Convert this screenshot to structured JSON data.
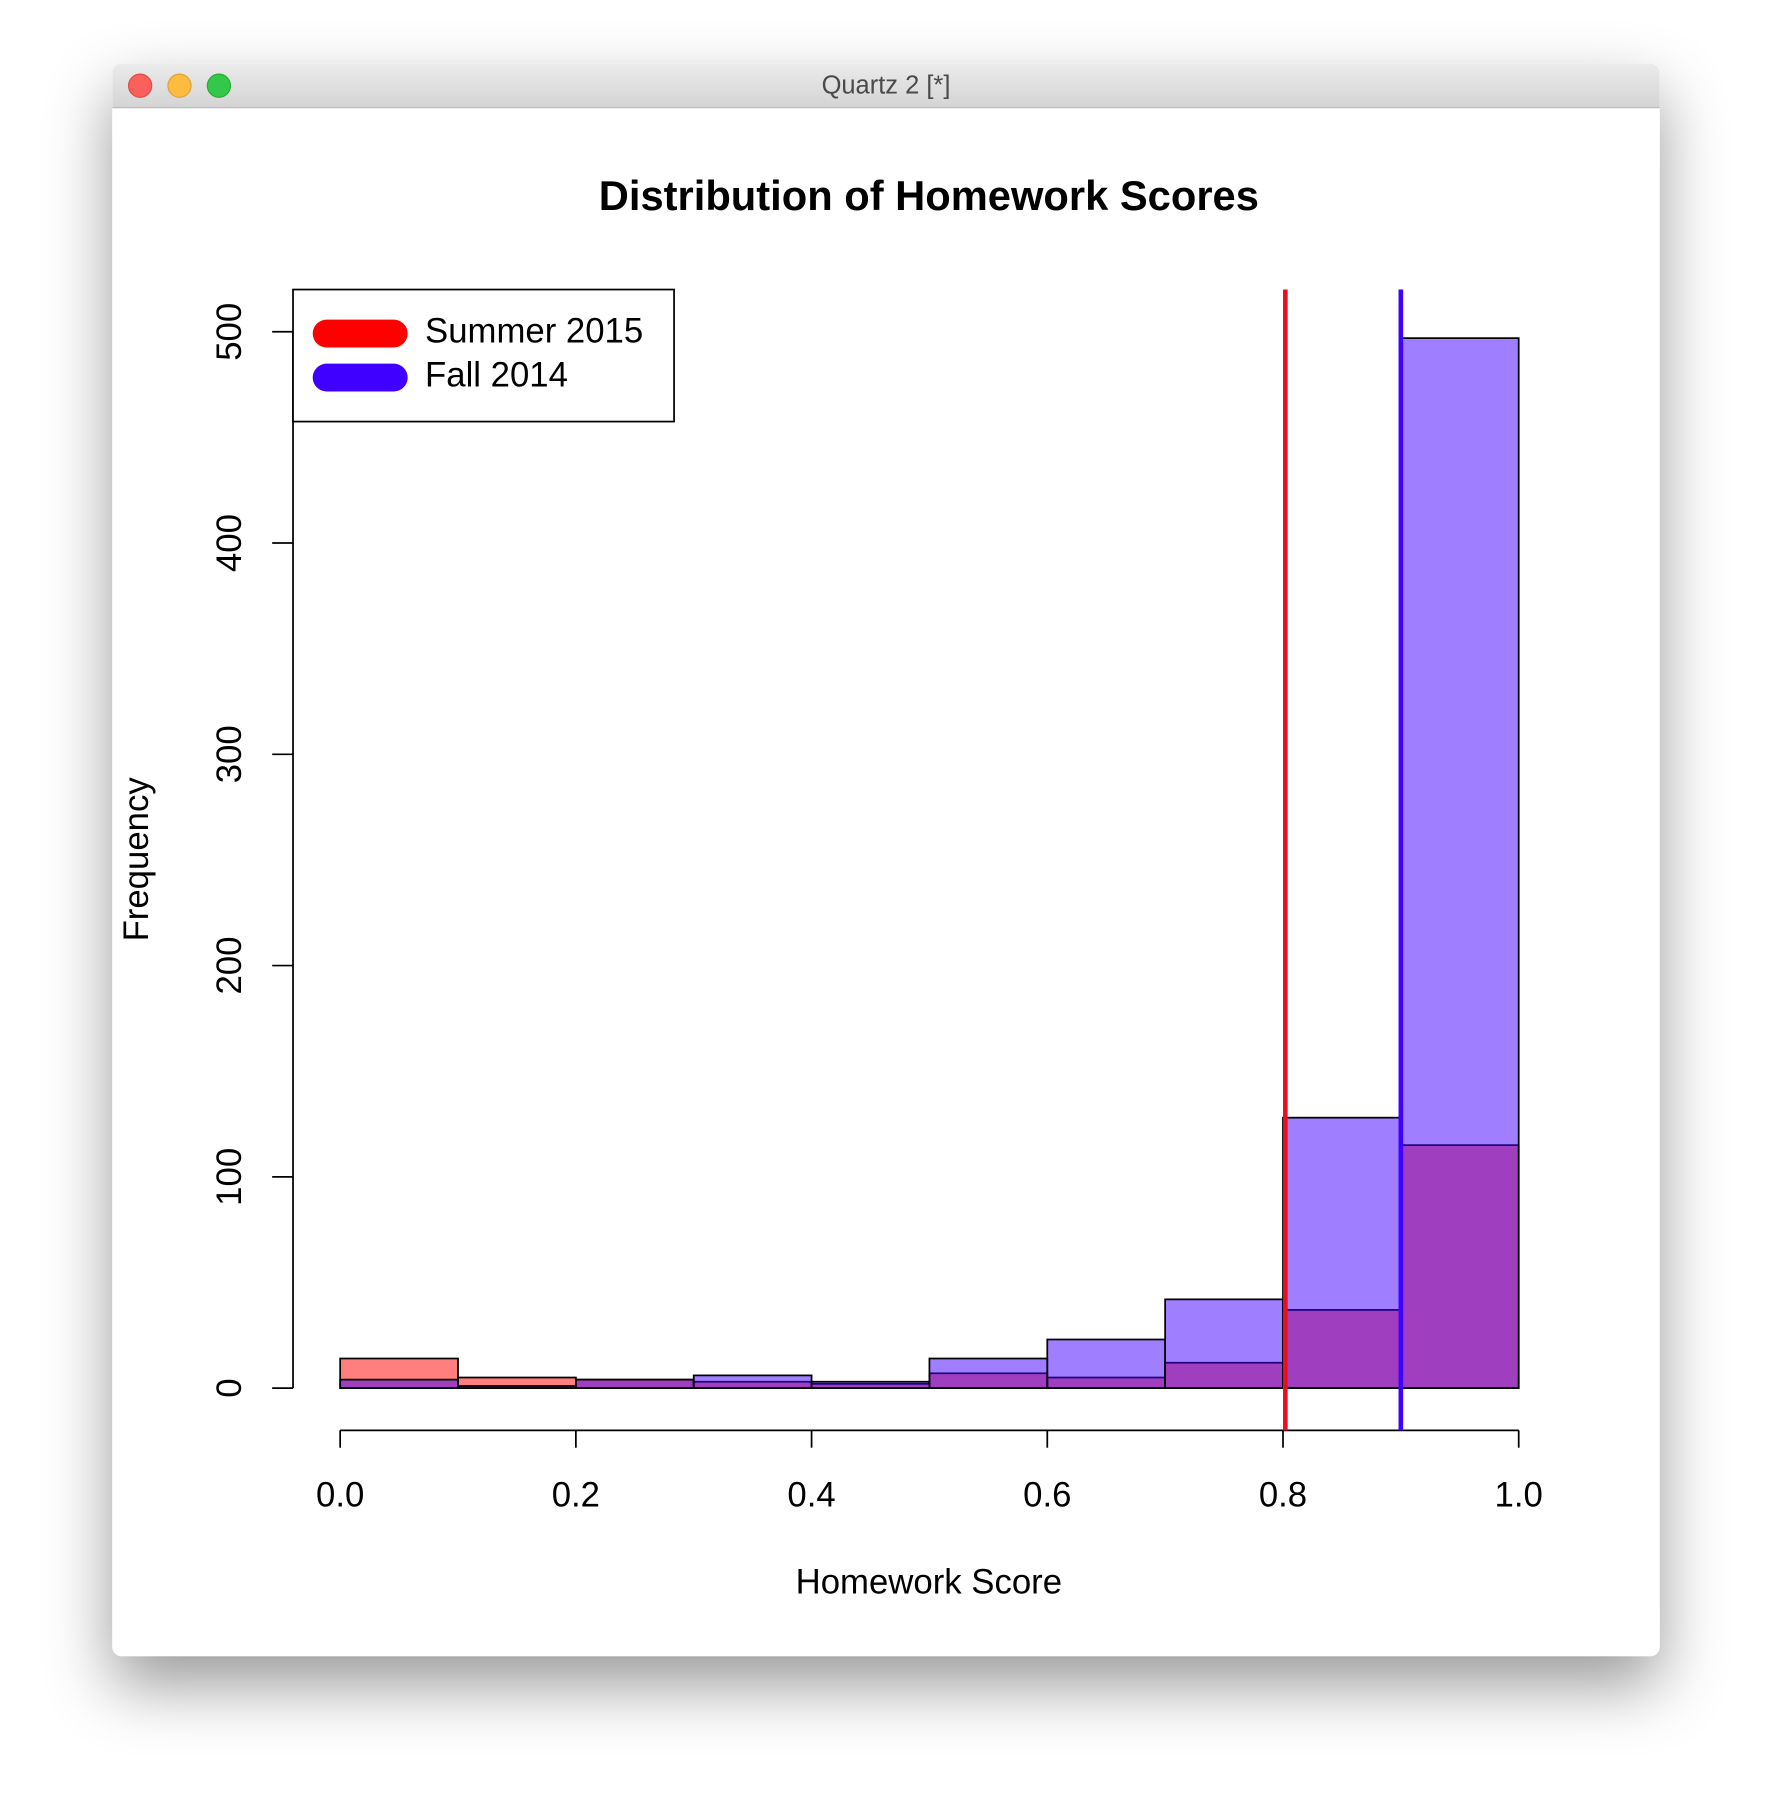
{
  "window_title": "Quartz 2 [*]",
  "chart_data": {
    "type": "histogram",
    "title": "Distribution of Homework Scores",
    "x_label": "Homework Score",
    "y_label": "Frequency",
    "bins": [
      0,
      0.1,
      0.2,
      0.3,
      0.4,
      0.5,
      0.6,
      0.7,
      0.8,
      0.9,
      1.0
    ],
    "series": [
      {
        "name": "Summer 2015",
        "color": "#ff0000",
        "values": [
          14,
          5,
          4,
          3,
          2,
          7,
          5,
          12,
          37,
          115
        ]
      },
      {
        "name": "Fall 2014",
        "color": "#4000ff",
        "values": [
          4,
          1,
          4,
          6,
          3,
          14,
          23,
          42,
          128,
          497
        ]
      }
    ],
    "alpha": 0.5,
    "vlines": [
      {
        "x": 0.802,
        "color": "#e8101f"
      },
      {
        "x": 0.9,
        "color": "#4000ff"
      }
    ],
    "xlim": [
      -0.04,
      1.04
    ],
    "ylim": [
      -20,
      520
    ],
    "xticks": [
      {
        "value": 0,
        "label": "0.0"
      },
      0.2,
      0.4,
      0.6,
      0.8,
      {
        "value": 1,
        "label": "1.0"
      }
    ],
    "yticks": [
      0,
      100,
      200,
      300,
      400,
      500
    ],
    "legend": "top-left"
  }
}
